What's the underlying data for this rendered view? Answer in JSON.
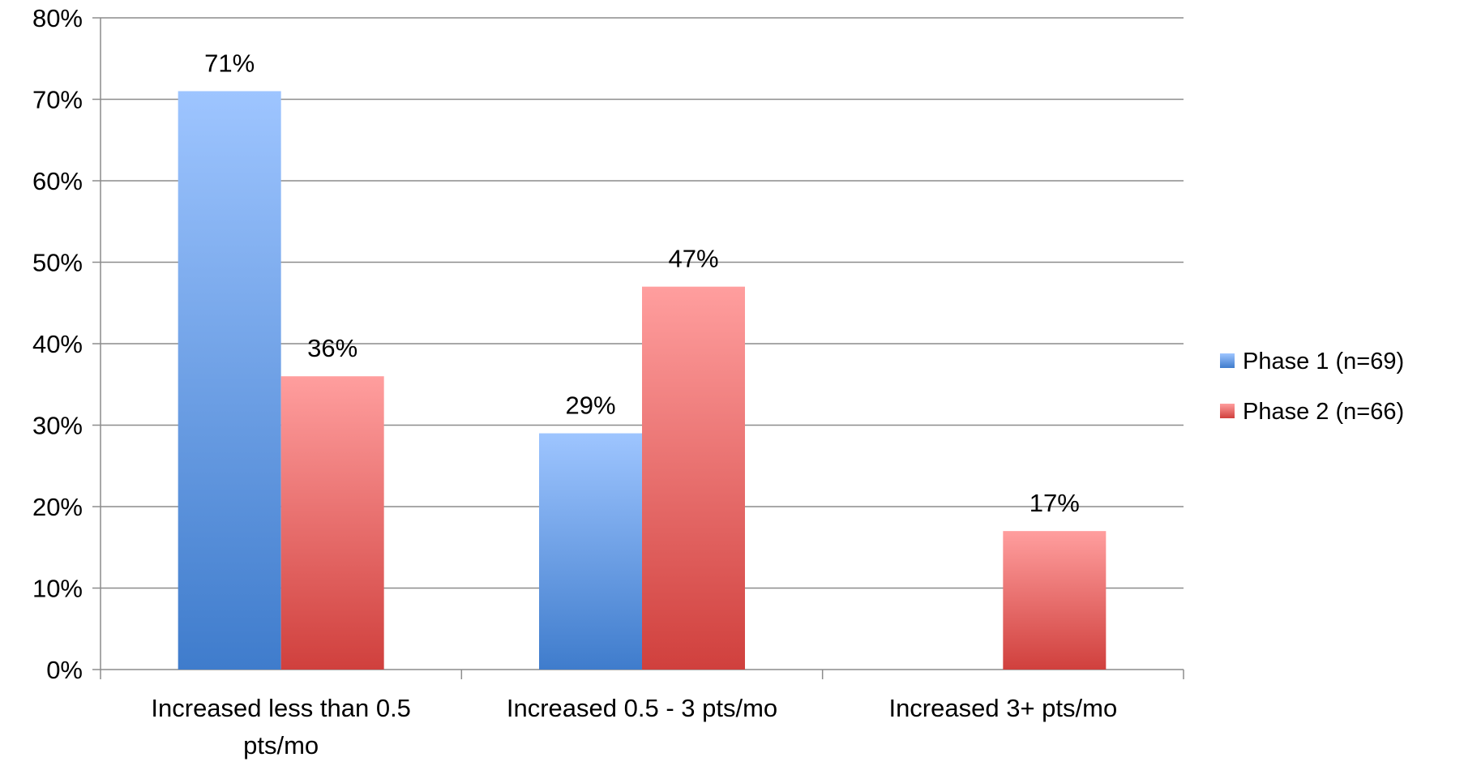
{
  "chart_data": {
    "type": "bar",
    "title": "",
    "xlabel": "",
    "ylabel": "",
    "ylim": [
      0,
      80
    ],
    "yticks": [
      "0%",
      "10%",
      "20%",
      "30%",
      "40%",
      "50%",
      "60%",
      "70%",
      "80%"
    ],
    "categories": [
      [
        "Increased less than 0.5",
        "pts/mo"
      ],
      [
        "Increased 0.5 - 3 pts/mo"
      ],
      [
        "Increased 3+ pts/mo"
      ]
    ],
    "series": [
      {
        "name": "Phase 1 (n=69)",
        "values": [
          71,
          29,
          null
        ],
        "labels": [
          "71%",
          "29%",
          ""
        ],
        "color_top": "#9ec5ff",
        "color_bottom": "#3f7ccc"
      },
      {
        "name": "Phase 2 (n=66)",
        "values": [
          36,
          47,
          17
        ],
        "labels": [
          "36%",
          "47%",
          "17%"
        ],
        "color_top": "#ff9e9e",
        "color_bottom": "#d0403d"
      }
    ],
    "grid": true,
    "legend_position": "right"
  }
}
